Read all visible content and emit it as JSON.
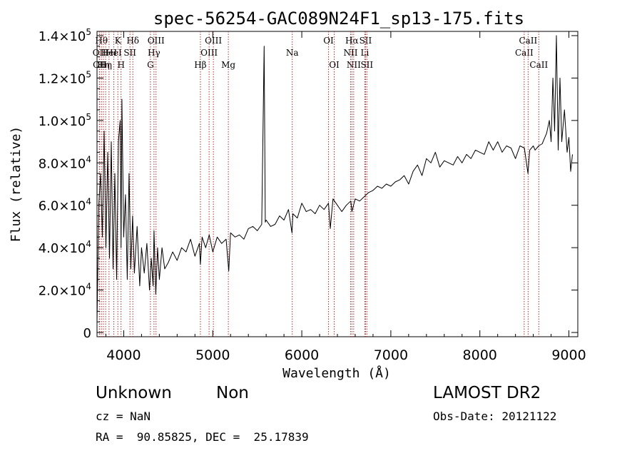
{
  "chart_data": {
    "type": "line",
    "title": "spec-56254-GAC089N24F1_sp13-175.fits",
    "xlabel": "Wavelength (Å)",
    "ylabel": "Flux (relative)",
    "xlim": [
      3700,
      9100
    ],
    "ylim": [
      -2000,
      142000
    ],
    "xticks": [
      {
        "value": 4000,
        "label": "4000"
      },
      {
        "value": 5000,
        "label": "5000"
      },
      {
        "value": 6000,
        "label": "6000"
      },
      {
        "value": 7000,
        "label": "7000"
      },
      {
        "value": 8000,
        "label": "8000"
      },
      {
        "value": 9000,
        "label": "9000"
      }
    ],
    "yticks": [
      {
        "value": 0,
        "mantissa": "0",
        "exp": ""
      },
      {
        "value": 20000,
        "mantissa": "2.0×10",
        "exp": "4"
      },
      {
        "value": 40000,
        "mantissa": "4.0×10",
        "exp": "4"
      },
      {
        "value": 60000,
        "mantissa": "6.0×10",
        "exp": "4"
      },
      {
        "value": 80000,
        "mantissa": "8.0×10",
        "exp": "4"
      },
      {
        "value": 100000,
        "mantissa": "1.0×10",
        "exp": "5"
      },
      {
        "value": 120000,
        "mantissa": "1.2×10",
        "exp": "5"
      },
      {
        "value": 140000,
        "mantissa": "1.4×10",
        "exp": "5"
      }
    ],
    "grid": false,
    "line_color": "#000000",
    "line_marker_color": "#b03030",
    "series": [
      {
        "x": [
          3700,
          3720,
          3740,
          3760,
          3780,
          3800,
          3820,
          3840,
          3860,
          3880,
          3900,
          3920,
          3940,
          3960,
          3970,
          3980,
          4000,
          4020,
          4040,
          4060,
          4080,
          4100,
          4120,
          4150,
          4180,
          4200,
          4230,
          4260,
          4290,
          4310,
          4330,
          4340,
          4360,
          4380,
          4400,
          4430,
          4460,
          4500,
          4550,
          4600,
          4650,
          4700,
          4750,
          4800,
          4850,
          4861,
          4880,
          4920,
          4960,
          5000,
          5050,
          5100,
          5150,
          5180,
          5200,
          5250,
          5300,
          5350,
          5400,
          5450,
          5500,
          5550,
          5577,
          5590,
          5600,
          5650,
          5700,
          5750,
          5800,
          5850,
          5890,
          5900,
          5950,
          6000,
          6050,
          6100,
          6150,
          6200,
          6250,
          6300,
          6320,
          6350,
          6400,
          6450,
          6500,
          6550,
          6563,
          6600,
          6650,
          6700,
          6750,
          6800,
          6850,
          6900,
          6950,
          7000,
          7050,
          7100,
          7150,
          7200,
          7250,
          7300,
          7350,
          7400,
          7450,
          7500,
          7550,
          7600,
          7650,
          7700,
          7750,
          7800,
          7850,
          7900,
          7950,
          8000,
          8050,
          8100,
          8150,
          8200,
          8250,
          8300,
          8350,
          8400,
          8450,
          8500,
          8540,
          8560,
          8600,
          8620,
          8660,
          8700,
          8750,
          8780,
          8800,
          8820,
          8840,
          8860,
          8880,
          8900,
          8920,
          8950,
          8980,
          9000,
          9020,
          9040
        ],
        "y": [
          5000,
          60000,
          75000,
          45000,
          95000,
          40000,
          85000,
          35000,
          90000,
          30000,
          75000,
          25000,
          90000,
          100000,
          40000,
          110000,
          45000,
          65000,
          25000,
          75000,
          30000,
          55000,
          28000,
          50000,
          22000,
          40000,
          28000,
          42000,
          20000,
          35000,
          22000,
          48000,
          18000,
          40000,
          25000,
          40000,
          30000,
          33000,
          38000,
          34000,
          40000,
          38000,
          44000,
          36000,
          42000,
          32000,
          45000,
          40000,
          46000,
          38000,
          45000,
          42000,
          44000,
          29000,
          47000,
          45000,
          46000,
          44000,
          49000,
          50000,
          48000,
          51000,
          135000,
          52000,
          53000,
          50000,
          51000,
          55000,
          53000,
          58000,
          47000,
          56000,
          54000,
          61000,
          57000,
          58000,
          56000,
          60000,
          58000,
          61000,
          49000,
          63000,
          60000,
          57000,
          60000,
          62000,
          57000,
          63000,
          62000,
          64000,
          66000,
          67000,
          69000,
          68000,
          70000,
          69000,
          71000,
          72000,
          74000,
          70000,
          76000,
          79000,
          74000,
          82000,
          80000,
          85000,
          78000,
          81000,
          80000,
          79000,
          83000,
          80000,
          84000,
          82000,
          86000,
          85000,
          84000,
          90000,
          86000,
          90000,
          85000,
          88000,
          87000,
          82000,
          88000,
          87000,
          75000,
          86000,
          88000,
          86000,
          88000,
          89000,
          94000,
          100000,
          90000,
          120000,
          95000,
          140000,
          86000,
          120000,
          90000,
          105000,
          85000,
          92000,
          76000,
          84000
        ]
      }
    ],
    "lines": [
      {
        "x": 3727,
        "label": "OII",
        "row": 1
      },
      {
        "x": 3730,
        "label": "OII",
        "row": 2
      },
      {
        "x": 3750,
        "label": "Hθ",
        "row": 0
      },
      {
        "x": 3772,
        "label": "Hη",
        "row": 2
      },
      {
        "x": 3797,
        "label": "Hη",
        "row": 2
      },
      {
        "x": 3835,
        "label": "HeI",
        "row": 1
      },
      {
        "x": 3889,
        "label": "HeI",
        "row": 1
      },
      {
        "x": 3934,
        "label": "K",
        "row": 0
      },
      {
        "x": 3970,
        "label": "H",
        "row": 2
      },
      {
        "x": 4070,
        "label": "SII",
        "row": 1
      },
      {
        "x": 4102,
        "label": "Hδ",
        "row": 0
      },
      {
        "x": 4300,
        "label": "G",
        "row": 2
      },
      {
        "x": 4340,
        "label": "Hγ",
        "row": 1
      },
      {
        "x": 4363,
        "label": "OIII",
        "row": 0
      },
      {
        "x": 4861,
        "label": "Hβ",
        "row": 2
      },
      {
        "x": 4959,
        "label": "OIII",
        "row": 1
      },
      {
        "x": 5007,
        "label": "OIII",
        "row": 0
      },
      {
        "x": 5175,
        "label": "Mg",
        "row": 2
      },
      {
        "x": 5893,
        "label": "Na",
        "row": 1
      },
      {
        "x": 6300,
        "label": "OI",
        "row": 0
      },
      {
        "x": 6364,
        "label": "OI",
        "row": 2
      },
      {
        "x": 6548,
        "label": "NII",
        "row": 1
      },
      {
        "x": 6563,
        "label": "Hα",
        "row": 0
      },
      {
        "x": 6583,
        "label": "NII",
        "row": 2
      },
      {
        "x": 6708,
        "label": "Li",
        "row": 1
      },
      {
        "x": 6716,
        "label": "SII",
        "row": 0
      },
      {
        "x": 6731,
        "label": "SII",
        "row": 2
      },
      {
        "x": 8498,
        "label": "CaII",
        "row": 1
      },
      {
        "x": 8542,
        "label": "CaII",
        "row": 0
      },
      {
        "x": 8662,
        "label": "CaII",
        "row": 2
      }
    ]
  },
  "info": {
    "class": "Unknown",
    "subclass": "Non",
    "cz": "cz = NaN",
    "radec": "RA =  90.85825, DEC =  25.17839",
    "survey": "LAMOST DR2",
    "obsdate": "Obs-Date: 20121122"
  }
}
